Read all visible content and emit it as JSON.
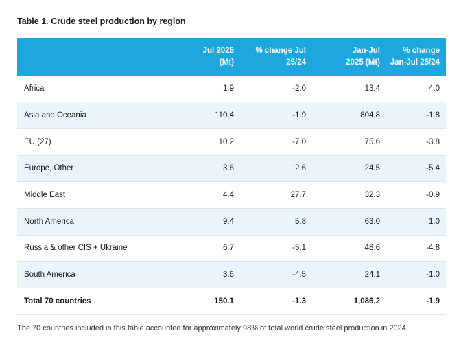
{
  "title": "Table 1. Crude steel production by region",
  "headers": {
    "region": "",
    "jul2025": [
      "Jul 2025",
      "(Mt)"
    ],
    "pct_jul": [
      "% change Jul",
      "25/24"
    ],
    "janjul": [
      "Jan-Jul",
      "2025 (Mt)"
    ],
    "pct_janjul": [
      "% change",
      "Jan-Jul 25/24"
    ]
  },
  "rows": [
    {
      "region": "Africa",
      "jul2025": "1.9",
      "pct_jul": "-2.0",
      "janjul": "13.4",
      "pct_janjul": "4.0"
    },
    {
      "region": "Asia and Oceania",
      "jul2025": "110.4",
      "pct_jul": "-1.9",
      "janjul": "804.8",
      "pct_janjul": "-1.8"
    },
    {
      "region": "EU (27)",
      "jul2025": "10.2",
      "pct_jul": "-7.0",
      "janjul": "75.6",
      "pct_janjul": "-3.8"
    },
    {
      "region": "Europe, Other",
      "jul2025": "3.6",
      "pct_jul": "2.6",
      "janjul": "24.5",
      "pct_janjul": "-5.4"
    },
    {
      "region": "Middle East",
      "jul2025": "4.4",
      "pct_jul": "27.7",
      "janjul": "32.3",
      "pct_janjul": "-0.9"
    },
    {
      "region": "North America",
      "jul2025": "9.4",
      "pct_jul": "5.8",
      "janjul": "63.0",
      "pct_janjul": "1.0"
    },
    {
      "region": "Russia & other CIS + Ukraine",
      "jul2025": "6.7",
      "pct_jul": "-5.1",
      "janjul": "48.6",
      "pct_janjul": "-4.8"
    },
    {
      "region": "South America",
      "jul2025": "3.6",
      "pct_jul": "-4.5",
      "janjul": "24.1",
      "pct_janjul": "-1.0"
    }
  ],
  "total": {
    "region": "Total 70 countries",
    "jul2025": "150.1",
    "pct_jul": "-1.3",
    "janjul": "1,086.2",
    "pct_janjul": "-1.9"
  },
  "footnote": "The 70 countries included in this table accounted for approximately 98% of total world crude steel production in 2024.",
  "colors": {
    "header_bg": "#1ea6df",
    "row_shade": "#eaf5fb",
    "header_text": "#ffffff"
  }
}
